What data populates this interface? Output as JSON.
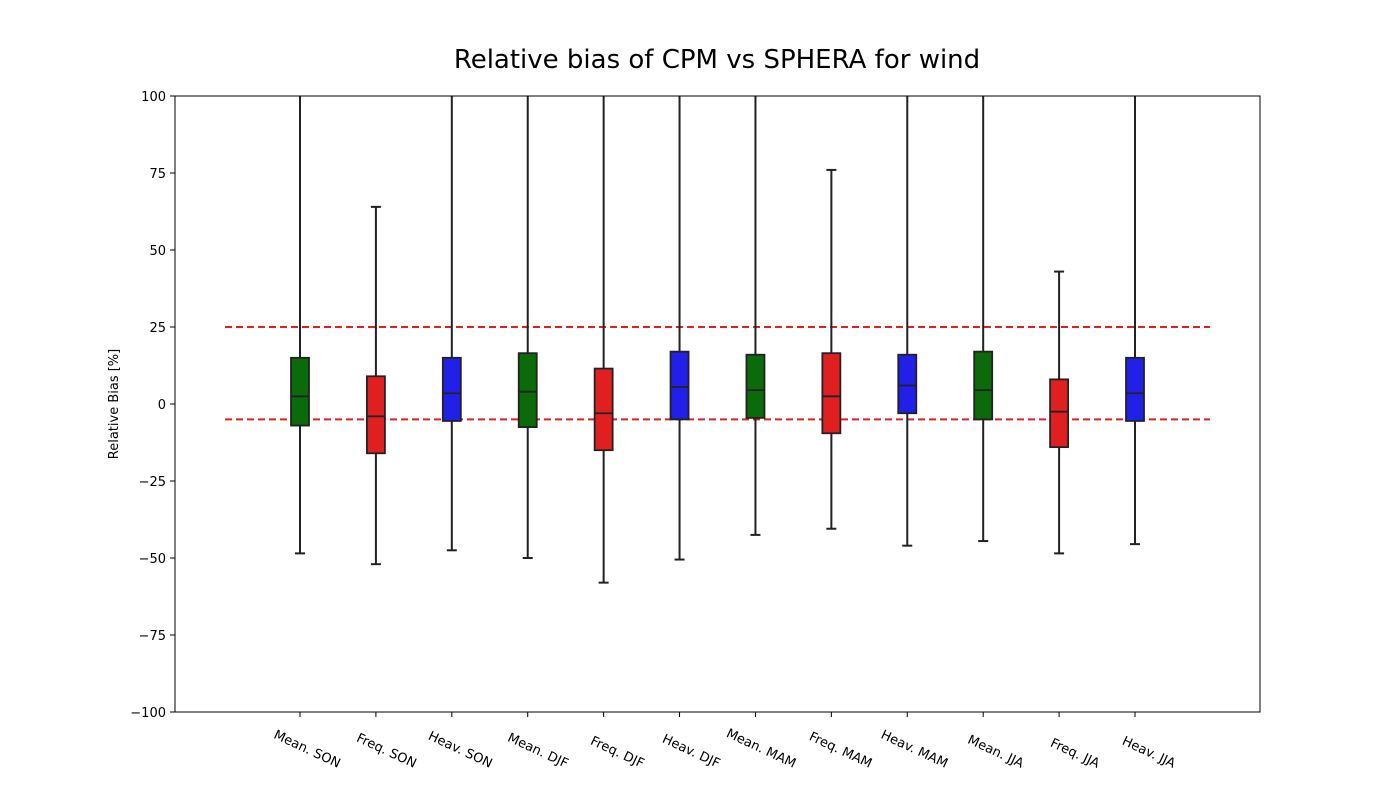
{
  "chart_data": {
    "type": "box",
    "title": "Relative bias of CPM vs SPHERA for wind",
    "xlabel": "",
    "ylabel": "Relative Bias [%]",
    "ylim": [
      -100,
      100
    ],
    "yticks": [
      100,
      75,
      50,
      25,
      0,
      -25,
      -50,
      -75,
      -100
    ],
    "grid": false,
    "categories": [
      "Mean. SON",
      "Freq. SON",
      "Heav. SON",
      "Mean. DJF",
      "Freq. DJF",
      "Heav. DJF",
      "Mean. MAM",
      "Freq. MAM",
      "Heav. MAM",
      "Mean. JJA",
      "Freq. JJA",
      "Heav. JJA"
    ],
    "boxes": [
      {
        "whisker_low": -48.5,
        "q1": -7,
        "median": 2.5,
        "q3": 15,
        "whisker_high": 100,
        "color": "#0b6b0b"
      },
      {
        "whisker_low": -52,
        "q1": -16,
        "median": -4,
        "q3": 9,
        "whisker_high": 64,
        "color": "#e02020"
      },
      {
        "whisker_low": -47.5,
        "q1": -5.5,
        "median": 3.5,
        "q3": 15,
        "whisker_high": 100,
        "color": "#2020e8"
      },
      {
        "whisker_low": -50,
        "q1": -7.5,
        "median": 4,
        "q3": 16.5,
        "whisker_high": 100,
        "color": "#0b6b0b"
      },
      {
        "whisker_low": -58,
        "q1": -15,
        "median": -3,
        "q3": 11.5,
        "whisker_high": 100,
        "color": "#e02020"
      },
      {
        "whisker_low": -50.5,
        "q1": -5,
        "median": 5.5,
        "q3": 17,
        "whisker_high": 100,
        "color": "#2020e8"
      },
      {
        "whisker_low": -42.5,
        "q1": -4.5,
        "median": 4.5,
        "q3": 16,
        "whisker_high": 100,
        "color": "#0b6b0b"
      },
      {
        "whisker_low": -40.5,
        "q1": -9.5,
        "median": 2.5,
        "q3": 16.5,
        "whisker_high": 76,
        "color": "#e02020"
      },
      {
        "whisker_low": -46,
        "q1": -3,
        "median": 6,
        "q3": 16,
        "whisker_high": 100,
        "color": "#2020e8"
      },
      {
        "whisker_low": -44.5,
        "q1": -5,
        "median": 4.5,
        "q3": 17,
        "whisker_high": 100,
        "color": "#0b6b0b"
      },
      {
        "whisker_low": -48.5,
        "q1": -14,
        "median": -2.5,
        "q3": 8,
        "whisker_high": 43,
        "color": "#e02020"
      },
      {
        "whisker_low": -45.5,
        "q1": -5.5,
        "median": 3.5,
        "q3": 15,
        "whisker_high": 100,
        "color": "#2020e8"
      }
    ],
    "reference_lines": [
      {
        "y": 25,
        "style": "dashed",
        "color": "#e02020"
      },
      {
        "y": -5,
        "style": "dashed",
        "color": "#e02020"
      }
    ]
  }
}
